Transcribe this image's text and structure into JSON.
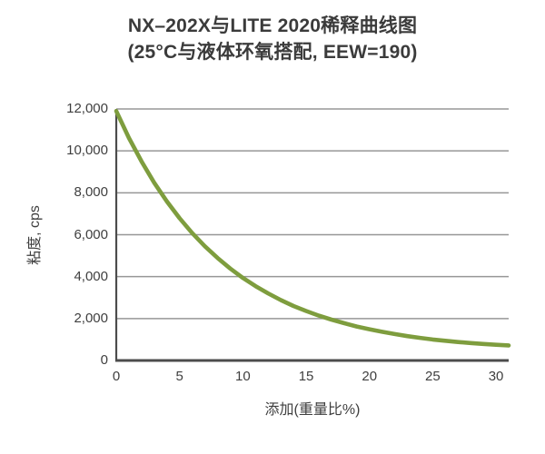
{
  "chart": {
    "title_line1": "NX–202X与LITE 2020稀释曲线图",
    "title_line2": "(25°C与液体环氧搭配, EEW=190)"
  },
  "chart_data": {
    "type": "line",
    "title": "NX–202X与LITE 2020稀释曲线图 (25°C与液体环氧搭配, EEW=190)",
    "xlabel": "添加(重量比%)",
    "ylabel": "粘度, cps",
    "xlim": [
      0,
      31
    ],
    "ylim": [
      0,
      12000
    ],
    "grid": "horizontal-only",
    "legend": "none",
    "xticks": [
      [
        0,
        "0"
      ],
      [
        5,
        "5"
      ],
      [
        10,
        "10"
      ],
      [
        15,
        "15"
      ],
      [
        20,
        "20"
      ],
      [
        25,
        "25"
      ],
      [
        30,
        "30"
      ]
    ],
    "yticks": [
      [
        0,
        "0"
      ],
      [
        2000,
        "2,000"
      ],
      [
        4000,
        "4,000"
      ],
      [
        6000,
        "6,000"
      ],
      [
        8000,
        "8,000"
      ],
      [
        10000,
        "10,000"
      ],
      [
        12000,
        "12,000"
      ]
    ],
    "series": [
      {
        "name": "NX-202X + LITE 2020 dilution curve",
        "x": [
          0,
          1,
          2,
          3,
          4,
          5,
          6,
          7,
          8,
          9,
          10,
          11,
          12,
          13,
          14,
          15,
          16,
          17,
          18,
          19,
          20,
          21,
          22,
          23,
          24,
          25,
          26,
          27,
          28,
          29,
          30,
          31
        ],
        "values": [
          11900,
          10620,
          9490,
          8480,
          7590,
          6790,
          6080,
          5450,
          4890,
          4390,
          3940,
          3550,
          3200,
          2880,
          2600,
          2360,
          2140,
          1950,
          1780,
          1620,
          1490,
          1370,
          1260,
          1160,
          1080,
          1000,
          940,
          880,
          830,
          790,
          750,
          720
        ]
      }
    ],
    "colors": {
      "curve": "#7e9d3e",
      "axis": "#4c4c4c",
      "grid": "#979797",
      "text": "#3f3f3f",
      "background": "#ffffff"
    }
  }
}
